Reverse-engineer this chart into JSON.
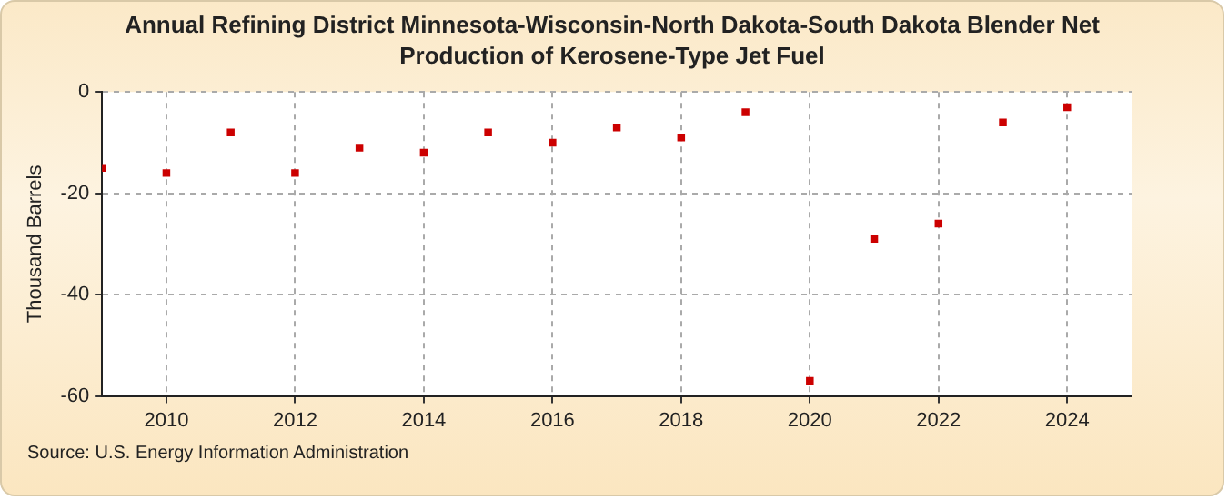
{
  "chart_data": {
    "type": "scatter",
    "title": "Annual Refining District Minnesota-Wisconsin-North Dakota-South Dakota Blender Net Production of Kerosene-Type Jet Fuel",
    "ylabel": "Thousand Barrels",
    "x": [
      2009,
      2010,
      2011,
      2012,
      2013,
      2014,
      2015,
      2016,
      2017,
      2018,
      2019,
      2020,
      2021,
      2022,
      2023,
      2024
    ],
    "series": [
      {
        "color": "#cc0000",
        "values": [
          -15,
          -16,
          -8,
          -16,
          -11,
          -12,
          -8,
          -10,
          -7,
          -9,
          -4,
          -57,
          -29,
          -26,
          -6,
          -3
        ]
      }
    ],
    "xlim": [
      2009,
      2025
    ],
    "xticks": [
      2010,
      2012,
      2014,
      2016,
      2018,
      2020,
      2022,
      2024
    ],
    "ylim": [
      -60,
      0
    ],
    "yticks": [
      -60,
      -40,
      -20,
      0
    ],
    "grid": true,
    "marker": "square",
    "legend": false,
    "annotations": [
      "Source: U.S. Energy Information Administration"
    ]
  }
}
